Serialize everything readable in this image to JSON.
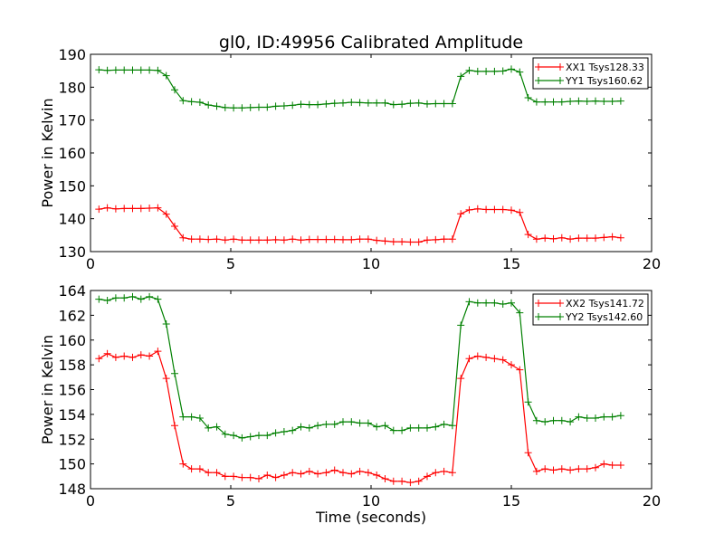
{
  "chart_data": [
    {
      "type": "line",
      "title": "gl0, ID:49956 Calibrated Amplitude",
      "xlabel": "",
      "ylabel": "Power in Kelvin",
      "xlim": [
        0,
        20
      ],
      "ylim": [
        130,
        190
      ],
      "xticks": [
        0,
        5,
        10,
        15,
        20
      ],
      "yticks": [
        130,
        140,
        150,
        160,
        170,
        180,
        190
      ],
      "grid": false,
      "legend_position": "top-right",
      "x": [
        0.3,
        0.6,
        0.9,
        1.2,
        1.5,
        1.8,
        2.1,
        2.4,
        2.7,
        3.0,
        3.3,
        3.6,
        3.9,
        4.2,
        4.5,
        4.8,
        5.1,
        5.4,
        5.7,
        6.0,
        6.3,
        6.6,
        6.9,
        7.2,
        7.5,
        7.8,
        8.1,
        8.4,
        8.7,
        9.0,
        9.3,
        9.6,
        9.9,
        10.2,
        10.5,
        10.8,
        11.1,
        11.4,
        11.7,
        12.0,
        12.3,
        12.6,
        12.9,
        13.2,
        13.5,
        13.8,
        14.1,
        14.4,
        14.7,
        15.0,
        15.3,
        15.6,
        15.9,
        16.2,
        16.5,
        16.8,
        17.1,
        17.4,
        17.7,
        18.0,
        18.3,
        18.6,
        18.9
      ],
      "series": [
        {
          "name": "XX1 Tsys128.33",
          "color": "#ff0000",
          "values": [
            142.9,
            143.3,
            143.0,
            143.1,
            143.1,
            143.1,
            143.2,
            143.3,
            141.4,
            137.7,
            134.2,
            133.8,
            133.8,
            133.7,
            133.8,
            133.5,
            133.8,
            133.5,
            133.5,
            133.5,
            133.5,
            133.6,
            133.5,
            133.8,
            133.5,
            133.7,
            133.7,
            133.7,
            133.7,
            133.6,
            133.6,
            133.8,
            133.8,
            133.4,
            133.2,
            133.0,
            133.0,
            132.9,
            132.9,
            133.5,
            133.6,
            133.8,
            133.8,
            141.5,
            142.7,
            143.0,
            142.8,
            142.8,
            142.8,
            142.6,
            141.9,
            135.2,
            133.8,
            134.1,
            133.9,
            134.2,
            133.8,
            134.1,
            134.1,
            134.1,
            134.3,
            134.5,
            134.2
          ]
        },
        {
          "name": "YY1 Tsys160.62",
          "color": "#008000",
          "values": [
            185.3,
            185.1,
            185.2,
            185.2,
            185.2,
            185.2,
            185.2,
            185.1,
            183.5,
            179.2,
            175.9,
            175.6,
            175.4,
            174.6,
            174.2,
            173.8,
            173.7,
            173.7,
            173.8,
            173.9,
            173.9,
            174.2,
            174.3,
            174.5,
            174.8,
            174.7,
            174.7,
            174.9,
            175.1,
            175.2,
            175.4,
            175.3,
            175.2,
            175.2,
            175.2,
            174.7,
            174.8,
            175.1,
            175.2,
            174.9,
            175.0,
            175.0,
            175.0,
            183.3,
            185.1,
            184.8,
            184.8,
            184.8,
            184.9,
            185.5,
            184.6,
            176.8,
            175.5,
            175.5,
            175.5,
            175.5,
            175.7,
            175.8,
            175.7,
            175.8,
            175.7,
            175.7,
            175.8
          ]
        }
      ]
    },
    {
      "type": "line",
      "title": "",
      "xlabel": "Time (seconds)",
      "ylabel": "Power in Kelvin",
      "xlim": [
        0,
        20
      ],
      "ylim": [
        148,
        164
      ],
      "xticks": [
        0,
        5,
        10,
        15,
        20
      ],
      "yticks": [
        148,
        150,
        152,
        154,
        156,
        158,
        160,
        162,
        164
      ],
      "grid": false,
      "legend_position": "top-right",
      "x": [
        0.3,
        0.6,
        0.9,
        1.2,
        1.5,
        1.8,
        2.1,
        2.4,
        2.7,
        3.0,
        3.3,
        3.6,
        3.9,
        4.2,
        4.5,
        4.8,
        5.1,
        5.4,
        5.7,
        6.0,
        6.3,
        6.6,
        6.9,
        7.2,
        7.5,
        7.8,
        8.1,
        8.4,
        8.7,
        9.0,
        9.3,
        9.6,
        9.9,
        10.2,
        10.5,
        10.8,
        11.1,
        11.4,
        11.7,
        12.0,
        12.3,
        12.6,
        12.9,
        13.2,
        13.5,
        13.8,
        14.1,
        14.4,
        14.7,
        15.0,
        15.3,
        15.6,
        15.9,
        16.2,
        16.5,
        16.8,
        17.1,
        17.4,
        17.7,
        18.0,
        18.3,
        18.6,
        18.9
      ],
      "series": [
        {
          "name": "XX2 Tsys141.72",
          "color": "#ff0000",
          "values": [
            158.5,
            158.9,
            158.6,
            158.7,
            158.6,
            158.8,
            158.7,
            159.1,
            156.9,
            153.1,
            150.0,
            149.6,
            149.6,
            149.3,
            149.3,
            149.0,
            149.0,
            148.9,
            148.9,
            148.8,
            149.1,
            148.9,
            149.1,
            149.3,
            149.2,
            149.4,
            149.2,
            149.3,
            149.5,
            149.3,
            149.2,
            149.4,
            149.3,
            149.1,
            148.8,
            148.6,
            148.6,
            148.5,
            148.6,
            149.0,
            149.3,
            149.4,
            149.3,
            156.9,
            158.5,
            158.7,
            158.6,
            158.5,
            158.4,
            158.0,
            157.6,
            150.9,
            149.4,
            149.6,
            149.5,
            149.6,
            149.5,
            149.6,
            149.6,
            149.7,
            150.0,
            149.9,
            149.9
          ]
        },
        {
          "name": "YY2 Tsys142.60",
          "color": "#008000",
          "values": [
            163.3,
            163.2,
            163.4,
            163.4,
            163.5,
            163.3,
            163.5,
            163.3,
            161.3,
            157.3,
            153.8,
            153.8,
            153.7,
            152.9,
            153.0,
            152.4,
            152.3,
            152.1,
            152.2,
            152.3,
            152.3,
            152.5,
            152.6,
            152.7,
            153.0,
            152.9,
            153.1,
            153.2,
            153.2,
            153.4,
            153.4,
            153.3,
            153.3,
            153.0,
            153.1,
            152.7,
            152.7,
            152.9,
            152.9,
            152.9,
            153.0,
            153.2,
            153.1,
            161.2,
            163.1,
            163.0,
            163.0,
            163.0,
            162.9,
            163.0,
            162.2,
            155.0,
            153.5,
            153.4,
            153.5,
            153.5,
            153.4,
            153.8,
            153.7,
            153.7,
            153.8,
            153.8,
            153.9
          ]
        }
      ]
    }
  ]
}
